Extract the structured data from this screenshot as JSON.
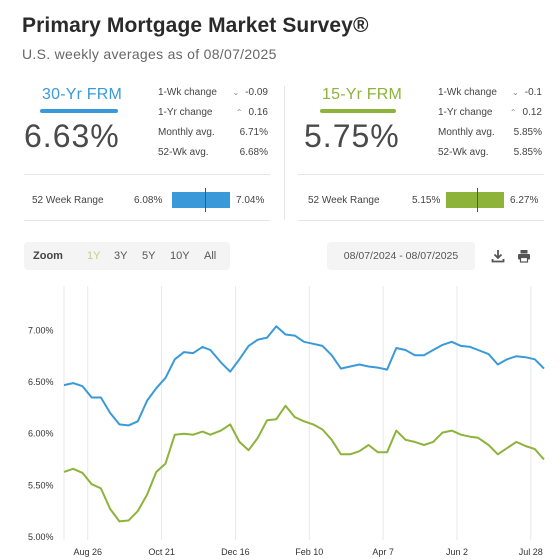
{
  "header": {
    "title": "Primary Mortgage Market Survey®",
    "subtitle": "U.S. weekly averages as of 08/07/2025"
  },
  "frm30": {
    "label": "30-Yr FRM",
    "rate": "6.63%",
    "stats": [
      {
        "label": "1-Wk change",
        "arrow": "down",
        "value": "-0.09"
      },
      {
        "label": "1-Yr change",
        "arrow": "up",
        "value": "0.16"
      },
      {
        "label": "Monthly avg.",
        "arrow": "",
        "value": "6.71%"
      },
      {
        "label": "52-Wk avg.",
        "arrow": "",
        "value": "6.68%"
      }
    ],
    "range_label": "52 Week Range",
    "range_low": "6.08%",
    "range_high": "7.04%",
    "range_current": 6.63,
    "range_low_num": 6.08,
    "range_high_num": 7.04,
    "color": "#3a9ad9"
  },
  "frm15": {
    "label": "15-Yr FRM",
    "rate": "5.75%",
    "stats": [
      {
        "label": "1-Wk change",
        "arrow": "down",
        "value": "-0.1"
      },
      {
        "label": "1-Yr change",
        "arrow": "up",
        "value": "0.12"
      },
      {
        "label": "Monthly avg.",
        "arrow": "",
        "value": "5.85%"
      },
      {
        "label": "52-Wk avg.",
        "arrow": "",
        "value": "5.85%"
      }
    ],
    "range_label": "52 Week Range",
    "range_low": "5.15%",
    "range_high": "6.27%",
    "range_current": 5.75,
    "range_low_num": 5.15,
    "range_high_num": 6.27,
    "color": "#8db33a"
  },
  "toolbar": {
    "zoom_label": "Zoom",
    "options": [
      "1Y",
      "3Y",
      "5Y",
      "10Y",
      "All"
    ],
    "active": "1Y",
    "date_range": "08/07/2024 - 08/07/2025",
    "download_icon": "download-icon",
    "print_icon": "print-icon"
  },
  "chart_data": {
    "type": "line",
    "x_ticks": [
      "Aug 26",
      "Oct 21",
      "Dec 16",
      "Feb 10",
      "Apr 7",
      "Jun 2",
      "Jul 28"
    ],
    "y_ticks": [
      "5.00%",
      "5.50%",
      "6.00%",
      "6.50%",
      "7.00%"
    ],
    "ylim": [
      4.97,
      7.43
    ],
    "x_start": "2024-08-08",
    "x_end": "2025-08-07",
    "grid": "vertical",
    "series": [
      {
        "color": "#3a9ad9",
        "x": [
          "2024-08-08",
          "2024-08-15",
          "2024-08-22",
          "2024-08-29",
          "2024-09-05",
          "2024-09-12",
          "2024-09-19",
          "2024-09-26",
          "2024-10-03",
          "2024-10-10",
          "2024-10-17",
          "2024-10-24",
          "2024-10-31",
          "2024-11-07",
          "2024-11-14",
          "2024-11-21",
          "2024-11-27",
          "2024-12-05",
          "2024-12-12",
          "2024-12-19",
          "2024-12-26",
          "2025-01-02",
          "2025-01-09",
          "2025-01-16",
          "2025-01-23",
          "2025-01-30",
          "2025-02-06",
          "2025-02-13",
          "2025-02-20",
          "2025-02-27",
          "2025-03-06",
          "2025-03-13",
          "2025-03-20",
          "2025-03-27",
          "2025-04-03",
          "2025-04-10",
          "2025-04-17",
          "2025-04-24",
          "2025-05-01",
          "2025-05-08",
          "2025-05-15",
          "2025-05-22",
          "2025-05-29",
          "2025-06-05",
          "2025-06-12",
          "2025-06-18",
          "2025-06-26",
          "2025-07-03",
          "2025-07-10",
          "2025-07-17",
          "2025-07-24",
          "2025-07-31",
          "2025-08-07"
        ],
        "values": [
          6.47,
          6.49,
          6.46,
          6.35,
          6.35,
          6.2,
          6.09,
          6.08,
          6.12,
          6.32,
          6.44,
          6.54,
          6.72,
          6.79,
          6.78,
          6.84,
          6.81,
          6.69,
          6.6,
          6.72,
          6.85,
          6.91,
          6.93,
          7.04,
          6.96,
          6.95,
          6.89,
          6.87,
          6.85,
          6.76,
          6.63,
          6.65,
          6.67,
          6.65,
          6.64,
          6.62,
          6.83,
          6.81,
          6.76,
          6.76,
          6.81,
          6.86,
          6.89,
          6.85,
          6.84,
          6.81,
          6.77,
          6.67,
          6.72,
          6.75,
          6.74,
          6.72,
          6.63
        ]
      },
      {
        "color": "#8db33a",
        "x": [
          "2024-08-08",
          "2024-08-15",
          "2024-08-22",
          "2024-08-29",
          "2024-09-05",
          "2024-09-12",
          "2024-09-19",
          "2024-09-26",
          "2024-10-03",
          "2024-10-10",
          "2024-10-17",
          "2024-10-24",
          "2024-10-31",
          "2024-11-07",
          "2024-11-14",
          "2024-11-21",
          "2024-11-27",
          "2024-12-05",
          "2024-12-12",
          "2024-12-19",
          "2024-12-26",
          "2025-01-02",
          "2025-01-09",
          "2025-01-16",
          "2025-01-23",
          "2025-01-30",
          "2025-02-06",
          "2025-02-13",
          "2025-02-20",
          "2025-02-27",
          "2025-03-06",
          "2025-03-13",
          "2025-03-20",
          "2025-03-27",
          "2025-04-03",
          "2025-04-10",
          "2025-04-17",
          "2025-04-24",
          "2025-05-01",
          "2025-05-08",
          "2025-05-15",
          "2025-05-22",
          "2025-05-29",
          "2025-06-05",
          "2025-06-12",
          "2025-06-18",
          "2025-06-26",
          "2025-07-03",
          "2025-07-10",
          "2025-07-17",
          "2025-07-24",
          "2025-07-31",
          "2025-08-07"
        ],
        "values": [
          5.63,
          5.66,
          5.62,
          5.51,
          5.47,
          5.27,
          5.15,
          5.16,
          5.25,
          5.41,
          5.63,
          5.71,
          5.99,
          6.0,
          5.99,
          6.02,
          5.99,
          6.03,
          6.09,
          5.92,
          5.84,
          5.96,
          6.13,
          6.14,
          6.27,
          6.16,
          6.12,
          6.09,
          6.04,
          5.94,
          5.8,
          5.8,
          5.83,
          5.89,
          5.82,
          5.82,
          6.03,
          5.94,
          5.92,
          5.89,
          5.92,
          6.01,
          6.03,
          5.99,
          5.97,
          5.96,
          5.89,
          5.8,
          5.86,
          5.92,
          5.88,
          5.85,
          5.75
        ]
      }
    ]
  }
}
